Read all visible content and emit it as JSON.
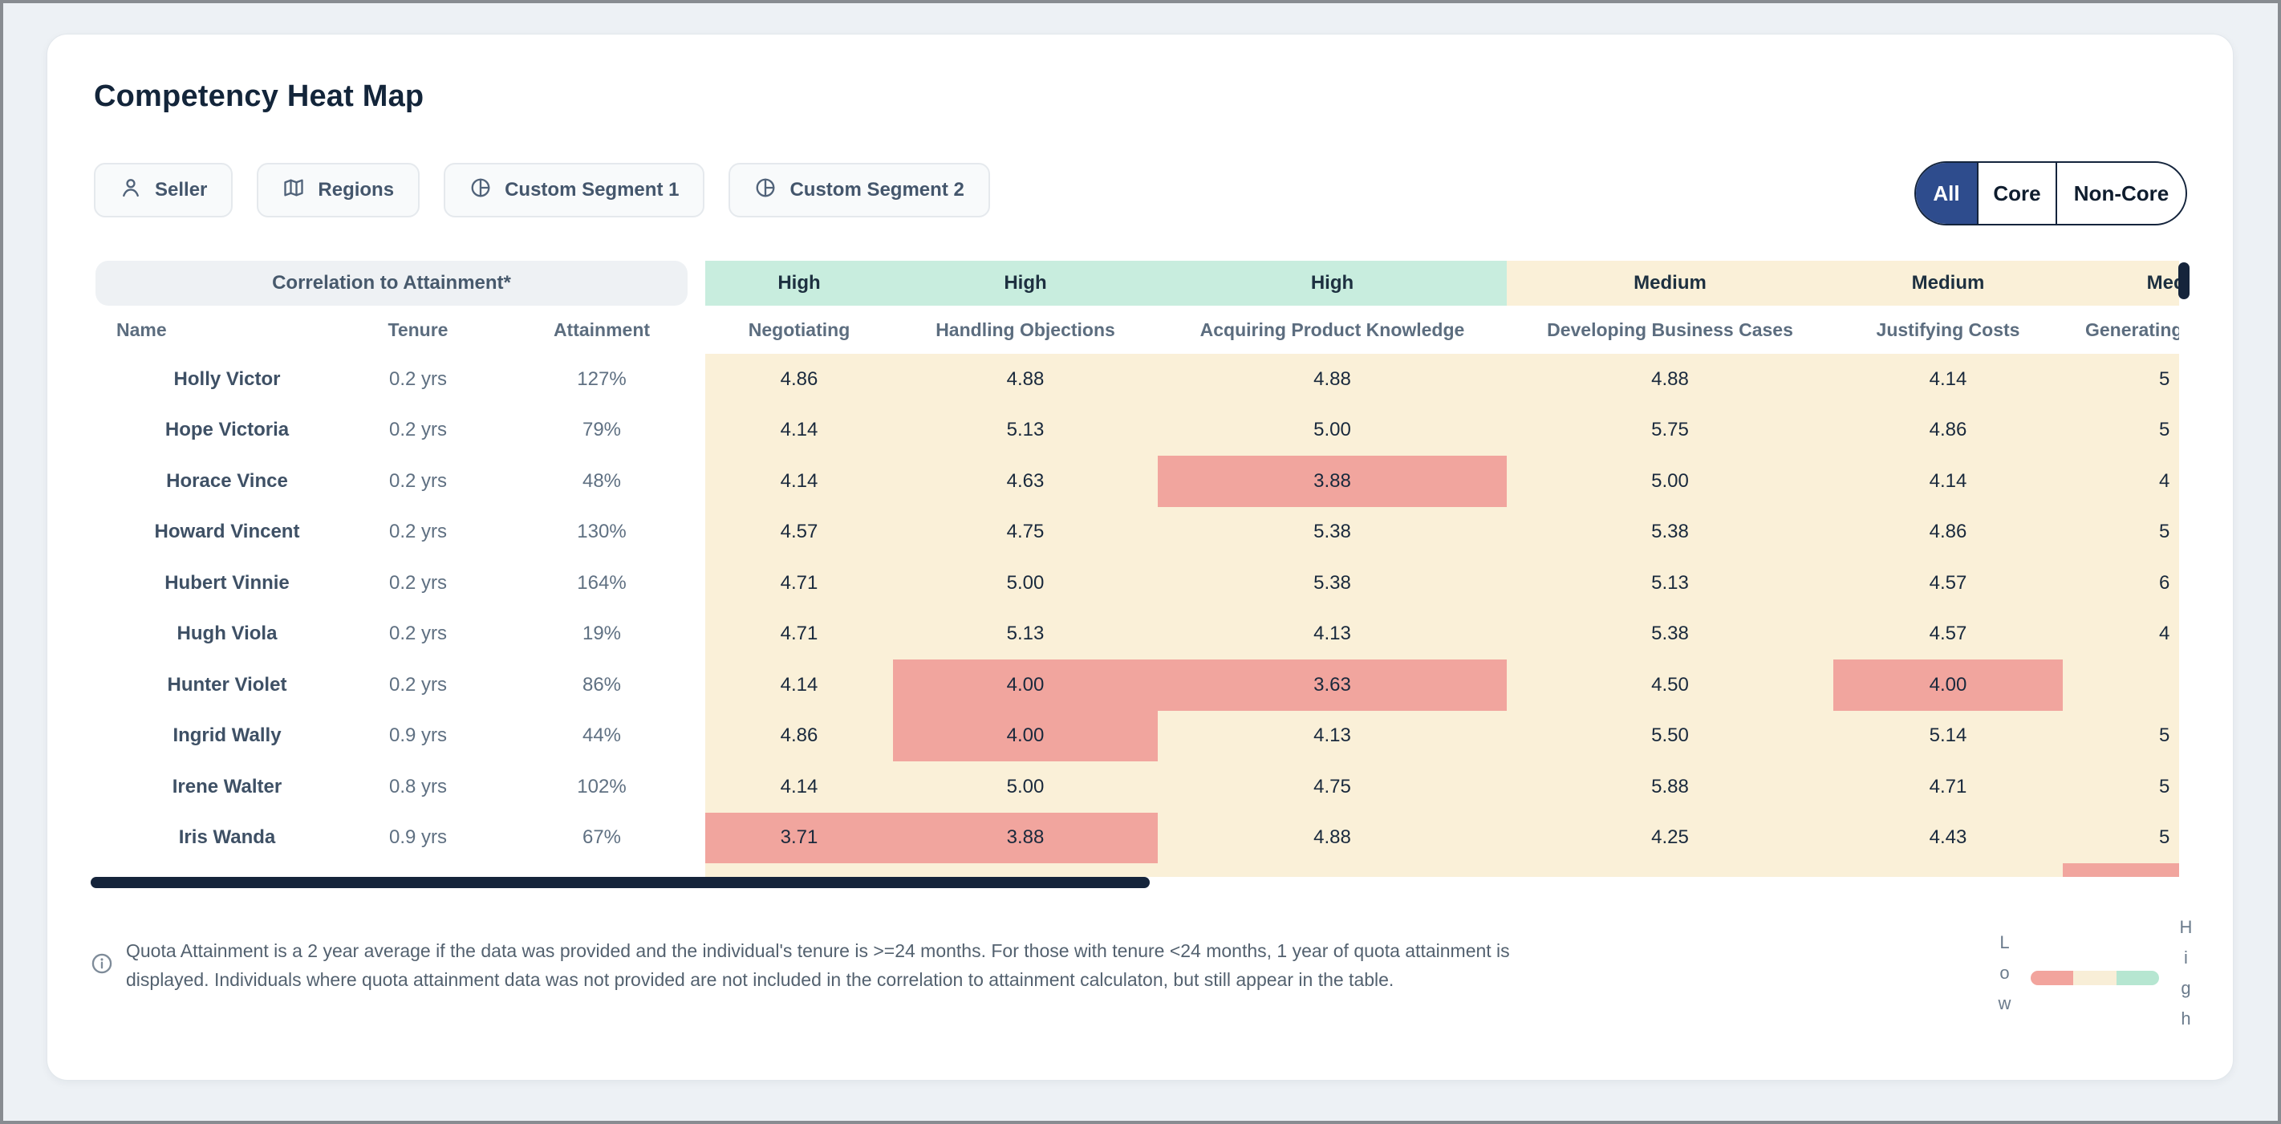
{
  "header": {
    "title": "Competency Heat Map"
  },
  "filters": [
    {
      "label": "Seller",
      "icon": "user-icon"
    },
    {
      "label": "Regions",
      "icon": "map-icon"
    },
    {
      "label": "Custom Segment 1",
      "icon": "pie-chart-icon"
    },
    {
      "label": "Custom Segment 2",
      "icon": "pie-chart-icon"
    }
  ],
  "view_toggle": {
    "options": [
      "All",
      "Core",
      "Non-Core"
    ],
    "selected": "All"
  },
  "table": {
    "correlation_header": "Correlation to Attainment*",
    "meta_columns": [
      "Name",
      "Tenure",
      "Attainment"
    ],
    "competency_columns": [
      {
        "label": "Negotiating",
        "correlation": "High"
      },
      {
        "label": "Handling Objections",
        "correlation": "High"
      },
      {
        "label": "Acquiring Product Knowledge",
        "correlation": "High"
      },
      {
        "label": "Developing Business Cases",
        "correlation": "Medium"
      },
      {
        "label": "Justifying Costs",
        "correlation": "Medium"
      },
      {
        "label": "Generating",
        "correlation": "Medium",
        "clipped": true
      }
    ],
    "rows": [
      {
        "name": "Holly Victor",
        "tenure": "0.2 yrs",
        "attainment": "127%",
        "scores": [
          "4.86",
          "4.88",
          "4.88",
          "4.88",
          "4.14"
        ],
        "generating_glimpse": "5"
      },
      {
        "name": "Hope Victoria",
        "tenure": "0.2 yrs",
        "attainment": "79%",
        "scores": [
          "4.14",
          "5.13",
          "5.00",
          "5.75",
          "4.86"
        ],
        "generating_glimpse": "5"
      },
      {
        "name": "Horace Vince",
        "tenure": "0.2 yrs",
        "attainment": "48%",
        "scores": [
          "4.14",
          "4.63",
          "3.88",
          "5.00",
          "4.14"
        ],
        "generating_glimpse": "4"
      },
      {
        "name": "Howard Vincent",
        "tenure": "0.2 yrs",
        "attainment": "130%",
        "scores": [
          "4.57",
          "4.75",
          "5.38",
          "5.38",
          "4.86"
        ],
        "generating_glimpse": "5"
      },
      {
        "name": "Hubert Vinnie",
        "tenure": "0.2 yrs",
        "attainment": "164%",
        "scores": [
          "4.71",
          "5.00",
          "5.38",
          "5.13",
          "4.57"
        ],
        "generating_glimpse": "6"
      },
      {
        "name": "Hugh Viola",
        "tenure": "0.2 yrs",
        "attainment": "19%",
        "scores": [
          "4.71",
          "5.13",
          "4.13",
          "5.38",
          "4.57"
        ],
        "generating_glimpse": "4"
      },
      {
        "name": "Hunter Violet",
        "tenure": "0.2 yrs",
        "attainment": "86%",
        "scores": [
          "4.14",
          "4.00",
          "3.63",
          "4.50",
          "4.00"
        ],
        "generating_glimpse": ""
      },
      {
        "name": "Ingrid Wally",
        "tenure": "0.9 yrs",
        "attainment": "44%",
        "scores": [
          "4.86",
          "4.00",
          "4.13",
          "5.50",
          "5.14"
        ],
        "generating_glimpse": "5"
      },
      {
        "name": "Irene Walter",
        "tenure": "0.8 yrs",
        "attainment": "102%",
        "scores": [
          "4.14",
          "5.00",
          "4.75",
          "5.88",
          "4.71"
        ],
        "generating_glimpse": "5"
      },
      {
        "name": "Iris Wanda",
        "tenure": "0.9 yrs",
        "attainment": "67%",
        "scores": [
          "3.71",
          "3.88",
          "4.88",
          "4.25",
          "4.43"
        ],
        "generating_glimpse": "5"
      }
    ],
    "low_score_threshold": 4.05
  },
  "footnote": {
    "text": "Quota Attainment is a 2 year average if the data was provided and the individual's tenure is >=24 months. For those with tenure <24 months, 1 year of quota attainment is displayed. Individuals where quota attainment data was not provided are not included in the correlation to attainment calculaton, but still appear in the table."
  },
  "legend": {
    "low_label": "Low",
    "high_label": "High",
    "segment_colors": [
      "#f2a49d",
      "#f8eed7",
      "#b6e6d1"
    ]
  },
  "colors": {
    "accent_blue": "#2e4c8d",
    "heat_neutral": "#faf0d8",
    "heat_low": "#f1a59e",
    "band_high": "#c8edde",
    "band_medium": "#faf0d8",
    "scrollbar": "#15243b"
  }
}
